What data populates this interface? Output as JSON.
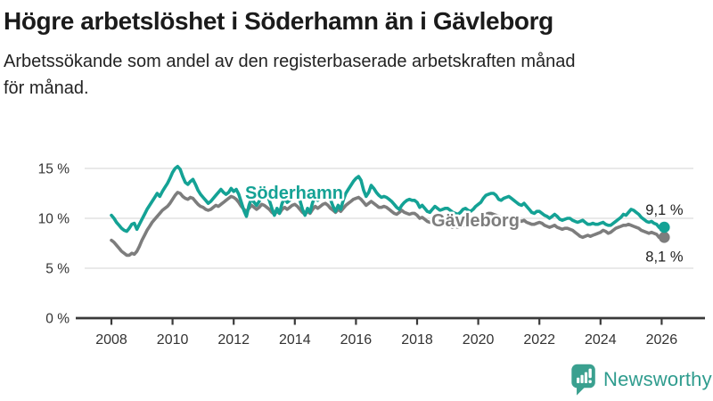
{
  "header": {
    "title": "Högre arbetslöshet i Söderhamn än i Gävleborg",
    "subtitle_lines": [
      "Arbetssökande som andel av den registerbaserade arbetskraften månad",
      "för månad."
    ]
  },
  "chart_data": {
    "type": "line",
    "title": "Högre arbetslöshet i Söderhamn än i Gävleborg",
    "x_start": {
      "year": 2008,
      "month": 1
    },
    "x_end": {
      "year": 2026,
      "month": 2
    },
    "frequency": "monthly",
    "x_tick_years": [
      2008,
      2010,
      2012,
      2014,
      2016,
      2018,
      2020,
      2022,
      2024,
      2026
    ],
    "x_tick_labels": [
      "2008",
      "2010",
      "2012",
      "2014",
      "2016",
      "2018",
      "2020",
      "2022",
      "2024",
      "2026"
    ],
    "y_ticks": [
      {
        "value": 15,
        "label": "15 %"
      },
      {
        "value": 10,
        "label": "10 %"
      },
      {
        "value": 5,
        "label": "5 %"
      },
      {
        "value": 0,
        "label": "0 %"
      }
    ],
    "ylim": [
      0,
      16
    ],
    "grid": "horizontal",
    "legend_position": "inline",
    "series": [
      {
        "name": "Söderhamn",
        "color": "#14a295",
        "end_label": "9,1 %",
        "end_value": 9.1,
        "values": [
          10.3,
          10.0,
          9.6,
          9.3,
          9.0,
          8.8,
          8.7,
          9.0,
          9.4,
          9.5,
          8.9,
          9.4,
          9.9,
          10.4,
          10.9,
          11.3,
          11.7,
          12.1,
          12.5,
          12.2,
          12.7,
          13.1,
          13.5,
          14.0,
          14.6,
          15.0,
          15.2,
          14.9,
          14.2,
          13.6,
          13.4,
          13.7,
          13.9,
          13.4,
          12.8,
          12.4,
          12.1,
          11.8,
          11.5,
          11.7,
          12.0,
          12.3,
          12.6,
          12.9,
          12.6,
          12.4,
          12.6,
          13.0,
          12.7,
          12.9,
          12.4,
          11.6,
          10.8,
          10.2,
          11.3,
          12.0,
          11.6,
          11.3,
          11.7,
          12.2,
          12.5,
          12.3,
          11.8,
          11.0,
          10.3,
          11.0,
          10.5,
          11.5,
          12.0,
          11.6,
          11.8,
          12.3,
          12.6,
          12.4,
          11.8,
          10.9,
          10.3,
          11.0,
          10.6,
          11.6,
          12.1,
          11.8,
          12.0,
          12.4,
          12.7,
          12.4,
          11.9,
          11.2,
          10.7,
          11.3,
          10.9,
          11.8,
          12.5,
          12.9,
          13.3,
          13.7,
          14.0,
          14.2,
          13.8,
          12.8,
          12.2,
          12.6,
          13.3,
          13.0,
          12.6,
          12.3,
          12.1,
          12.2,
          12.1,
          11.9,
          11.7,
          11.4,
          11.1,
          10.9,
          11.3,
          11.6,
          11.8,
          11.9,
          11.8,
          11.8,
          11.6,
          11.1,
          11.3,
          11.0,
          10.7,
          10.6,
          10.9,
          11.2,
          11.0,
          10.8,
          10.9,
          11.0,
          11.0,
          10.8,
          10.6,
          10.5,
          10.4,
          10.6,
          10.9,
          11.0,
          10.8,
          10.7,
          10.9,
          11.2,
          11.4,
          11.6,
          12.0,
          12.3,
          12.4,
          12.5,
          12.5,
          12.3,
          11.9,
          11.8,
          12.0,
          12.1,
          12.2,
          12.0,
          11.8,
          11.6,
          11.4,
          11.3,
          11.5,
          11.2,
          10.9,
          10.6,
          10.5,
          10.7,
          10.7,
          10.5,
          10.3,
          10.2,
          10.0,
          10.2,
          10.4,
          10.2,
          9.9,
          9.8,
          9.9,
          10.0,
          10.0,
          9.8,
          9.7,
          9.6,
          9.7,
          9.8,
          9.6,
          9.4,
          9.4,
          9.5,
          9.4,
          9.4,
          9.5,
          9.6,
          9.4,
          9.3,
          9.3,
          9.5,
          9.7,
          9.9,
          10.1,
          10.4,
          10.3,
          10.6,
          10.9,
          10.8,
          10.6,
          10.4,
          10.1,
          9.9,
          9.7,
          9.6,
          9.7,
          9.5,
          9.4,
          9.1,
          9.3,
          9.1
        ]
      },
      {
        "name": "Gävleborg",
        "color": "#7d7d7d",
        "end_label": "8,1 %",
        "end_value": 8.1,
        "values": [
          7.8,
          7.6,
          7.3,
          7.0,
          6.7,
          6.5,
          6.3,
          6.3,
          6.5,
          6.4,
          6.7,
          7.2,
          7.8,
          8.3,
          8.8,
          9.2,
          9.6,
          9.9,
          10.2,
          10.5,
          10.8,
          11.0,
          11.2,
          11.5,
          11.9,
          12.3,
          12.6,
          12.5,
          12.2,
          12.0,
          11.9,
          12.1,
          12.0,
          11.7,
          11.4,
          11.2,
          11.1,
          10.9,
          10.8,
          10.9,
          11.1,
          11.3,
          11.2,
          11.4,
          11.6,
          11.8,
          12.0,
          12.2,
          12.1,
          11.9,
          11.6,
          11.2,
          10.9,
          10.7,
          11.0,
          11.3,
          11.1,
          10.9,
          11.1,
          11.4,
          11.3,
          11.1,
          10.9,
          10.6,
          10.4,
          10.7,
          10.5,
          10.9,
          11.1,
          10.9,
          11.1,
          11.3,
          11.4,
          11.2,
          10.9,
          10.6,
          10.4,
          10.7,
          10.5,
          10.9,
          11.2,
          11.0,
          11.2,
          11.4,
          11.5,
          11.3,
          11.0,
          10.8,
          10.6,
          10.9,
          10.7,
          11.0,
          11.3,
          11.5,
          11.7,
          11.9,
          12.0,
          12.1,
          11.9,
          11.6,
          11.3,
          11.5,
          11.7,
          11.5,
          11.3,
          11.1,
          11.1,
          11.2,
          11.1,
          10.9,
          10.7,
          10.5,
          10.4,
          10.6,
          10.8,
          10.6,
          10.5,
          10.4,
          10.5,
          10.5,
          10.3,
          10.0,
          10.1,
          9.9,
          9.7,
          9.6,
          9.7,
          9.5,
          9.3,
          9.3,
          9.3,
          9.3,
          9.3,
          9.2,
          9.1,
          9.2,
          9.1,
          9.2,
          9.3,
          9.3,
          9.2,
          9.3,
          9.4,
          9.5,
          9.7,
          9.9,
          10.2,
          10.4,
          10.5,
          10.5,
          10.4,
          10.3,
          10.2,
          10.1,
          10.1,
          10.2,
          10.2,
          10.1,
          10.0,
          9.9,
          9.8,
          9.7,
          9.8,
          9.6,
          9.5,
          9.4,
          9.4,
          9.5,
          9.6,
          9.5,
          9.3,
          9.2,
          9.1,
          9.2,
          9.3,
          9.1,
          9.0,
          8.9,
          9.0,
          9.0,
          8.9,
          8.8,
          8.6,
          8.4,
          8.2,
          8.1,
          8.2,
          8.3,
          8.2,
          8.3,
          8.4,
          8.5,
          8.6,
          8.8,
          8.7,
          8.5,
          8.6,
          8.8,
          9.0,
          9.1,
          9.2,
          9.3,
          9.3,
          9.4,
          9.3,
          9.2,
          9.1,
          9.0,
          8.8,
          8.7,
          8.6,
          8.5,
          8.6,
          8.5,
          8.4,
          8.1,
          8.2,
          8.1
        ]
      }
    ]
  },
  "branding": {
    "logo_text": "Newsworthy",
    "logo_color": "#2f9c8e",
    "logo_icon_color": "#3aa08f"
  }
}
